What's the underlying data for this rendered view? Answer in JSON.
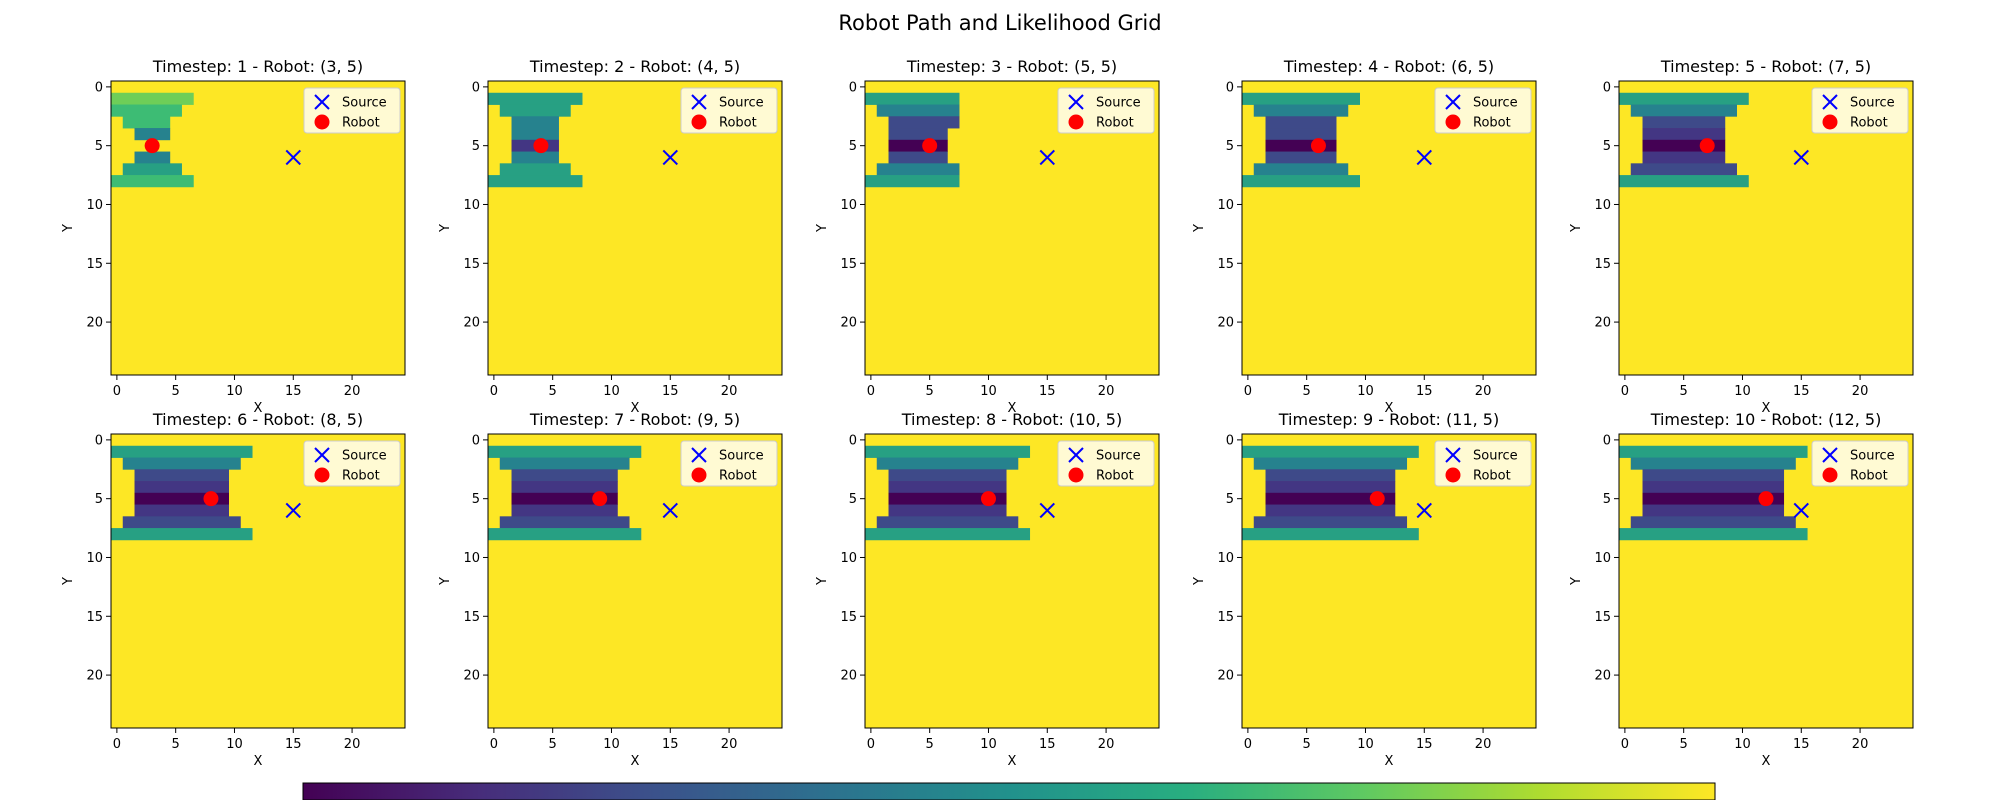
{
  "chart_data": {
    "type": "heatmap",
    "title": "Robot Path and Likelihood Grid",
    "grid_size": 25,
    "axis": {
      "xlabel": "X",
      "ylabel": "Y",
      "xticks": [
        0,
        5,
        10,
        15,
        20
      ],
      "yticks": [
        0,
        5,
        10,
        15,
        20
      ],
      "xlim": [
        -0.5,
        24.5
      ],
      "ylim": [
        24.5,
        -0.5
      ]
    },
    "source": {
      "label": "Source",
      "x": 15,
      "y": 6,
      "color": "#0000ff",
      "marker": "x"
    },
    "robot_legend": {
      "label": "Robot",
      "color": "#ff0000",
      "marker": "o"
    },
    "colormap": "viridis",
    "level_colors": {
      "0": "#440154",
      "1": "#433683",
      "2": "#3e4a89",
      "3": "#26828e",
      "4": "#27a083",
      "5": "#3dbc74",
      "6": "#6ece58",
      "7": "#fde725"
    },
    "background_level": 7,
    "panels": [
      {
        "title": "Timestep: 1 - Robot: (3, 5)",
        "robot": [
          3,
          5
        ],
        "rows": [
          {
            "y": 1,
            "x0": 0,
            "x1": 6,
            "level": 6
          },
          {
            "y": 2,
            "x0": 0,
            "x1": 5,
            "level": 5
          },
          {
            "y": 3,
            "x0": 1,
            "x1": 4,
            "level": 5
          },
          {
            "y": 4,
            "x0": 2,
            "x1": 4,
            "level": 3
          },
          {
            "y": 6,
            "x0": 2,
            "x1": 4,
            "level": 3
          },
          {
            "y": 7,
            "x0": 1,
            "x1": 5,
            "level": 4
          },
          {
            "y": 8,
            "x0": 0,
            "x1": 6,
            "level": 5
          }
        ]
      },
      {
        "title": "Timestep: 2 - Robot: (4, 5)",
        "robot": [
          4,
          5
        ],
        "rows": [
          {
            "y": 1,
            "x0": 0,
            "x1": 7,
            "level": 4
          },
          {
            "y": 2,
            "x0": 1,
            "x1": 6,
            "level": 4
          },
          {
            "y": 3,
            "x0": 2,
            "x1": 5,
            "level": 3
          },
          {
            "y": 4,
            "x0": 2,
            "x1": 5,
            "level": 3
          },
          {
            "y": 5,
            "x0": 2,
            "x1": 5,
            "level": 1
          },
          {
            "y": 6,
            "x0": 2,
            "x1": 5,
            "level": 3
          },
          {
            "y": 7,
            "x0": 1,
            "x1": 6,
            "level": 4
          },
          {
            "y": 8,
            "x0": 0,
            "x1": 7,
            "level": 4
          }
        ]
      },
      {
        "title": "Timestep: 3 - Robot: (5, 5)",
        "robot": [
          5,
          5
        ],
        "rows": [
          {
            "y": 1,
            "x0": 0,
            "x1": 7,
            "level": 4
          },
          {
            "y": 2,
            "x0": 1,
            "x1": 7,
            "level": 3
          },
          {
            "y": 3,
            "x0": 2,
            "x1": 7,
            "level": 2
          },
          {
            "y": 4,
            "x0": 2,
            "x1": 6,
            "level": 2
          },
          {
            "y": 5,
            "x0": 2,
            "x1": 6,
            "level": 0
          },
          {
            "y": 6,
            "x0": 2,
            "x1": 6,
            "level": 2
          },
          {
            "y": 7,
            "x0": 1,
            "x1": 7,
            "level": 3
          },
          {
            "y": 8,
            "x0": 0,
            "x1": 7,
            "level": 4
          }
        ]
      },
      {
        "title": "Timestep: 4 - Robot: (6, 5)",
        "robot": [
          6,
          5
        ],
        "rows": [
          {
            "y": 1,
            "x0": 0,
            "x1": 9,
            "level": 4
          },
          {
            "y": 2,
            "x0": 1,
            "x1": 8,
            "level": 3
          },
          {
            "y": 3,
            "x0": 2,
            "x1": 7,
            "level": 2
          },
          {
            "y": 4,
            "x0": 2,
            "x1": 7,
            "level": 2
          },
          {
            "y": 5,
            "x0": 2,
            "x1": 7,
            "level": 0
          },
          {
            "y": 6,
            "x0": 2,
            "x1": 7,
            "level": 2
          },
          {
            "y": 7,
            "x0": 1,
            "x1": 8,
            "level": 3
          },
          {
            "y": 8,
            "x0": 0,
            "x1": 9,
            "level": 4
          }
        ]
      },
      {
        "title": "Timestep: 5 - Robot: (7, 5)",
        "robot": [
          7,
          5
        ],
        "rows": [
          {
            "y": 1,
            "x0": 0,
            "x1": 10,
            "level": 4
          },
          {
            "y": 2,
            "x0": 1,
            "x1": 9,
            "level": 3
          },
          {
            "y": 3,
            "x0": 2,
            "x1": 8,
            "level": 2
          },
          {
            "y": 4,
            "x0": 2,
            "x1": 8,
            "level": 1
          },
          {
            "y": 5,
            "x0": 2,
            "x1": 8,
            "level": 0
          },
          {
            "y": 6,
            "x0": 2,
            "x1": 8,
            "level": 1
          },
          {
            "y": 7,
            "x0": 1,
            "x1": 9,
            "level": 2
          },
          {
            "y": 8,
            "x0": 0,
            "x1": 10,
            "level": 4
          }
        ]
      },
      {
        "title": "Timestep: 6 - Robot: (8, 5)",
        "robot": [
          8,
          5
        ],
        "rows": [
          {
            "y": 1,
            "x0": 0,
            "x1": 11,
            "level": 4
          },
          {
            "y": 2,
            "x0": 1,
            "x1": 10,
            "level": 3
          },
          {
            "y": 3,
            "x0": 2,
            "x1": 9,
            "level": 2
          },
          {
            "y": 4,
            "x0": 2,
            "x1": 9,
            "level": 1
          },
          {
            "y": 5,
            "x0": 2,
            "x1": 9,
            "level": 0
          },
          {
            "y": 6,
            "x0": 2,
            "x1": 9,
            "level": 1
          },
          {
            "y": 7,
            "x0": 1,
            "x1": 10,
            "level": 2
          },
          {
            "y": 8,
            "x0": 0,
            "x1": 11,
            "level": 4
          }
        ]
      },
      {
        "title": "Timestep: 7 - Robot: (9, 5)",
        "robot": [
          9,
          5
        ],
        "rows": [
          {
            "y": 1,
            "x0": 0,
            "x1": 12,
            "level": 4
          },
          {
            "y": 2,
            "x0": 1,
            "x1": 11,
            "level": 3
          },
          {
            "y": 3,
            "x0": 2,
            "x1": 10,
            "level": 2
          },
          {
            "y": 4,
            "x0": 2,
            "x1": 10,
            "level": 1
          },
          {
            "y": 5,
            "x0": 2,
            "x1": 10,
            "level": 0
          },
          {
            "y": 6,
            "x0": 2,
            "x1": 10,
            "level": 1
          },
          {
            "y": 7,
            "x0": 1,
            "x1": 11,
            "level": 2
          },
          {
            "y": 8,
            "x0": 0,
            "x1": 12,
            "level": 4
          }
        ]
      },
      {
        "title": "Timestep: 8 - Robot: (10, 5)",
        "robot": [
          10,
          5
        ],
        "rows": [
          {
            "y": 1,
            "x0": 0,
            "x1": 13,
            "level": 4
          },
          {
            "y": 2,
            "x0": 1,
            "x1": 12,
            "level": 3
          },
          {
            "y": 3,
            "x0": 2,
            "x1": 11,
            "level": 2
          },
          {
            "y": 4,
            "x0": 2,
            "x1": 11,
            "level": 1
          },
          {
            "y": 5,
            "x0": 2,
            "x1": 11,
            "level": 0
          },
          {
            "y": 6,
            "x0": 2,
            "x1": 11,
            "level": 1
          },
          {
            "y": 7,
            "x0": 1,
            "x1": 12,
            "level": 2
          },
          {
            "y": 8,
            "x0": 0,
            "x1": 13,
            "level": 4
          }
        ]
      },
      {
        "title": "Timestep: 9 - Robot: (11, 5)",
        "robot": [
          11,
          5
        ],
        "rows": [
          {
            "y": 1,
            "x0": 0,
            "x1": 14,
            "level": 4
          },
          {
            "y": 2,
            "x0": 1,
            "x1": 13,
            "level": 3
          },
          {
            "y": 3,
            "x0": 2,
            "x1": 12,
            "level": 2
          },
          {
            "y": 4,
            "x0": 2,
            "x1": 12,
            "level": 1
          },
          {
            "y": 5,
            "x0": 2,
            "x1": 12,
            "level": 0
          },
          {
            "y": 6,
            "x0": 2,
            "x1": 12,
            "level": 1
          },
          {
            "y": 7,
            "x0": 1,
            "x1": 13,
            "level": 2
          },
          {
            "y": 8,
            "x0": 0,
            "x1": 14,
            "level": 4
          }
        ]
      },
      {
        "title": "Timestep: 10 - Robot: (12, 5)",
        "robot": [
          12,
          5
        ],
        "rows": [
          {
            "y": 1,
            "x0": 0,
            "x1": 15,
            "level": 4
          },
          {
            "y": 2,
            "x0": 1,
            "x1": 14,
            "level": 3
          },
          {
            "y": 3,
            "x0": 2,
            "x1": 13,
            "level": 2
          },
          {
            "y": 4,
            "x0": 2,
            "x1": 13,
            "level": 1
          },
          {
            "y": 5,
            "x0": 2,
            "x1": 13,
            "level": 0
          },
          {
            "y": 6,
            "x0": 2,
            "x1": 13,
            "level": 1
          },
          {
            "y": 7,
            "x0": 1,
            "x1": 14,
            "level": 2
          },
          {
            "y": 8,
            "x0": 0,
            "x1": 15,
            "level": 4
          }
        ]
      }
    ],
    "colorbar": {
      "colors": [
        "#440154",
        "#472d7b",
        "#3b528b",
        "#2c728e",
        "#21918c",
        "#28ae80",
        "#5ec962",
        "#addc30",
        "#fde725"
      ],
      "tick_count": 6
    }
  }
}
